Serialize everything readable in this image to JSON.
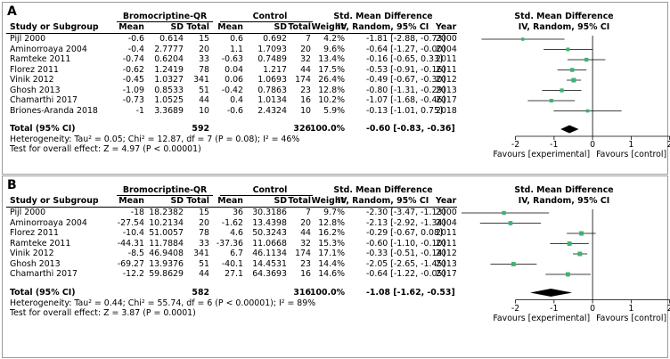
{
  "chart_data": [
    {
      "type": "forest",
      "panel_label": "A",
      "headers": {
        "study": "Study or Subgroup",
        "group1": "Bromocriptine-QR",
        "group2": "Control",
        "mean": "Mean",
        "sd": "SD",
        "total": "Total",
        "weight": "Weight",
        "effect_title": "Std. Mean Difference",
        "effect_method": "IV, Random, 95% CI",
        "year": "Year",
        "plot_title": "Std. Mean Difference",
        "plot_method": "IV, Random, 95% CI"
      },
      "studies": [
        {
          "study": "Pijl 2000",
          "m1": "-0.6",
          "sd1": "0.614",
          "n1": "15",
          "m2": "0.6",
          "sd2": "0.692",
          "n2": "7",
          "weight": "4.2%",
          "ci_text": "-1.81 [-2.88, -0.73]",
          "year": "2000",
          "est": -1.81,
          "lo": -2.88,
          "hi": -0.73
        },
        {
          "study": "Aminorroaya 2004",
          "m1": "-0.4",
          "sd1": "2.7777",
          "n1": "20",
          "m2": "1.1",
          "sd2": "1.7093",
          "n2": "20",
          "weight": "9.6%",
          "ci_text": "-0.64 [-1.27, -0.00]",
          "year": "2004",
          "est": -0.64,
          "lo": -1.27,
          "hi": -0.0
        },
        {
          "study": "Ramteke 2011",
          "m1": "-0.74",
          "sd1": "0.6204",
          "n1": "33",
          "m2": "-0.63",
          "sd2": "0.7489",
          "n2": "32",
          "weight": "13.4%",
          "ci_text": "-0.16 [-0.65, 0.33]",
          "year": "2011",
          "est": -0.16,
          "lo": -0.65,
          "hi": 0.33
        },
        {
          "study": "Florez 2011",
          "m1": "-0.62",
          "sd1": "1.2419",
          "n1": "78",
          "m2": "0.04",
          "sd2": "1.217",
          "n2": "44",
          "weight": "17.5%",
          "ci_text": "-0.53 [-0.91, -0.16]",
          "year": "2011",
          "est": -0.53,
          "lo": -0.91,
          "hi": -0.16
        },
        {
          "study": "Vinik 2012",
          "m1": "-0.45",
          "sd1": "1.0327",
          "n1": "341",
          "m2": "0.06",
          "sd2": "1.0693",
          "n2": "174",
          "weight": "26.4%",
          "ci_text": "-0.49 [-0.67, -0.30]",
          "year": "2012",
          "est": -0.49,
          "lo": -0.67,
          "hi": -0.3
        },
        {
          "study": "Ghosh 2013",
          "m1": "-1.09",
          "sd1": "0.8533",
          "n1": "51",
          "m2": "-0.42",
          "sd2": "0.7863",
          "n2": "23",
          "weight": "12.8%",
          "ci_text": "-0.80 [-1.31, -0.29]",
          "year": "2013",
          "est": -0.8,
          "lo": -1.31,
          "hi": -0.29
        },
        {
          "study": "Chamarthi 2017",
          "m1": "-0.73",
          "sd1": "1.0525",
          "n1": "44",
          "m2": "0.4",
          "sd2": "1.0134",
          "n2": "16",
          "weight": "10.2%",
          "ci_text": "-1.07 [-1.68, -0.46]",
          "year": "2017",
          "est": -1.07,
          "lo": -1.68,
          "hi": -0.46
        },
        {
          "study": "Briones-Aranda 2018",
          "m1": "-1",
          "sd1": "3.3689",
          "n1": "10",
          "m2": "-0.6",
          "sd2": "2.4324",
          "n2": "10",
          "weight": "5.9%",
          "ci_text": "-0.13 [-1.01, 0.75]",
          "year": "2018",
          "est": -0.13,
          "lo": -1.01,
          "hi": 0.75
        }
      ],
      "total": {
        "label": "Total (95% CI)",
        "n1": "592",
        "n2": "326",
        "weight": "100.0%",
        "ci_text": "-0.60 [-0.83, -0.36]",
        "est": -0.6,
        "lo": -0.83,
        "hi": -0.36
      },
      "heterogeneity": "Heterogeneity: Tau² = 0.05; Chi² = 12.87, df = 7 (P = 0.08); I² = 46%",
      "overall_test": "Test for overall effect: Z = 4.97 (P < 0.00001)",
      "axis": {
        "min": -2,
        "max": 2,
        "ticks": [
          -2,
          -1,
          0,
          1,
          2
        ],
        "tick_labels": [
          "-2",
          "-1",
          "0",
          "1",
          "2"
        ]
      },
      "favours_left": "Favours [experimental]",
      "favours_right": "Favours [control]"
    },
    {
      "type": "forest",
      "panel_label": "B",
      "headers": {
        "study": "Study or Subgroup",
        "group1": "Bromocriptine-QR",
        "group2": "Control",
        "mean": "Mean",
        "sd": "SD",
        "total": "Total",
        "weight": "Weight",
        "effect_title": "Std. Mean Difference",
        "effect_method": "IV, Random, 95% CI",
        "year": "Year",
        "plot_title": "Std. Mean Difference",
        "plot_method": "IV, Random, 95% CI"
      },
      "studies": [
        {
          "study": "Pijl 2000",
          "m1": "-18",
          "sd1": "18.2382",
          "n1": "15",
          "m2": "36",
          "sd2": "30.3186",
          "n2": "7",
          "weight": "9.7%",
          "ci_text": "-2.30 [-3.47, -1.13]",
          "year": "2000",
          "est": -2.3,
          "lo": -3.47,
          "hi": -1.13
        },
        {
          "study": "Aminorroaya 2004",
          "m1": "-27.54",
          "sd1": "10.2134",
          "n1": "20",
          "m2": "-1.62",
          "sd2": "13.4398",
          "n2": "20",
          "weight": "12.8%",
          "ci_text": "-2.13 [-2.92, -1.34]",
          "year": "2004",
          "est": -2.13,
          "lo": -2.92,
          "hi": -1.34
        },
        {
          "study": "Florez 2011",
          "m1": "-10.4",
          "sd1": "51.0057",
          "n1": "78",
          "m2": "4.6",
          "sd2": "50.3243",
          "n2": "44",
          "weight": "16.2%",
          "ci_text": "-0.29 [-0.67, 0.08]",
          "year": "2011",
          "est": -0.29,
          "lo": -0.67,
          "hi": 0.08
        },
        {
          "study": "Ramteke 2011",
          "m1": "-44.31",
          "sd1": "11.7884",
          "n1": "33",
          "m2": "-37.36",
          "sd2": "11.0668",
          "n2": "32",
          "weight": "15.3%",
          "ci_text": "-0.60 [-1.10, -0.10]",
          "year": "2011",
          "est": -0.6,
          "lo": -1.1,
          "hi": -0.1
        },
        {
          "study": "Vinik 2012",
          "m1": "-8.5",
          "sd1": "46.9408",
          "n1": "341",
          "m2": "6.7",
          "sd2": "46.1134",
          "n2": "174",
          "weight": "17.1%",
          "ci_text": "-0.33 [-0.51, -0.14]",
          "year": "2012",
          "est": -0.33,
          "lo": -0.51,
          "hi": -0.14
        },
        {
          "study": "Ghosh 2013",
          "m1": "-69.27",
          "sd1": "13.9376",
          "n1": "51",
          "m2": "-40.1",
          "sd2": "14.4531",
          "n2": "23",
          "weight": "14.4%",
          "ci_text": "-2.05 [-2.65, -1.45]",
          "year": "2013",
          "est": -2.05,
          "lo": -2.65,
          "hi": -1.45
        },
        {
          "study": "Chamarthi 2017",
          "m1": "-12.2",
          "sd1": "59.8629",
          "n1": "44",
          "m2": "27.1",
          "sd2": "64.3693",
          "n2": "16",
          "weight": "14.6%",
          "ci_text": "-0.64 [-1.22, -0.05]",
          "year": "2017",
          "est": -0.64,
          "lo": -1.22,
          "hi": -0.05
        }
      ],
      "total": {
        "label": "Total (95% CI)",
        "n1": "582",
        "n2": "316",
        "weight": "100.0%",
        "ci_text": "-1.08 [-1.62, -0.53]",
        "est": -1.08,
        "lo": -1.62,
        "hi": -0.53
      },
      "heterogeneity": "Heterogeneity: Tau² = 0.44; Chi² = 55.74, df = 6 (P < 0.00001); I² = 89%",
      "overall_test": "Test for overall effect: Z = 3.87 (P = 0.0001)",
      "axis": {
        "min": -2,
        "max": 2,
        "ticks": [
          -2,
          -1,
          0,
          1,
          2
        ],
        "tick_labels": [
          "-2",
          "-1",
          "0",
          "1",
          "2"
        ]
      },
      "favours_left": "Favours [experimental]",
      "favours_right": "Favours [control]"
    }
  ],
  "colors": {
    "study_marker": "#3cb371",
    "diamond": "#000000",
    "ci_line": "#000000",
    "panel_border": "#9a9a9a"
  }
}
